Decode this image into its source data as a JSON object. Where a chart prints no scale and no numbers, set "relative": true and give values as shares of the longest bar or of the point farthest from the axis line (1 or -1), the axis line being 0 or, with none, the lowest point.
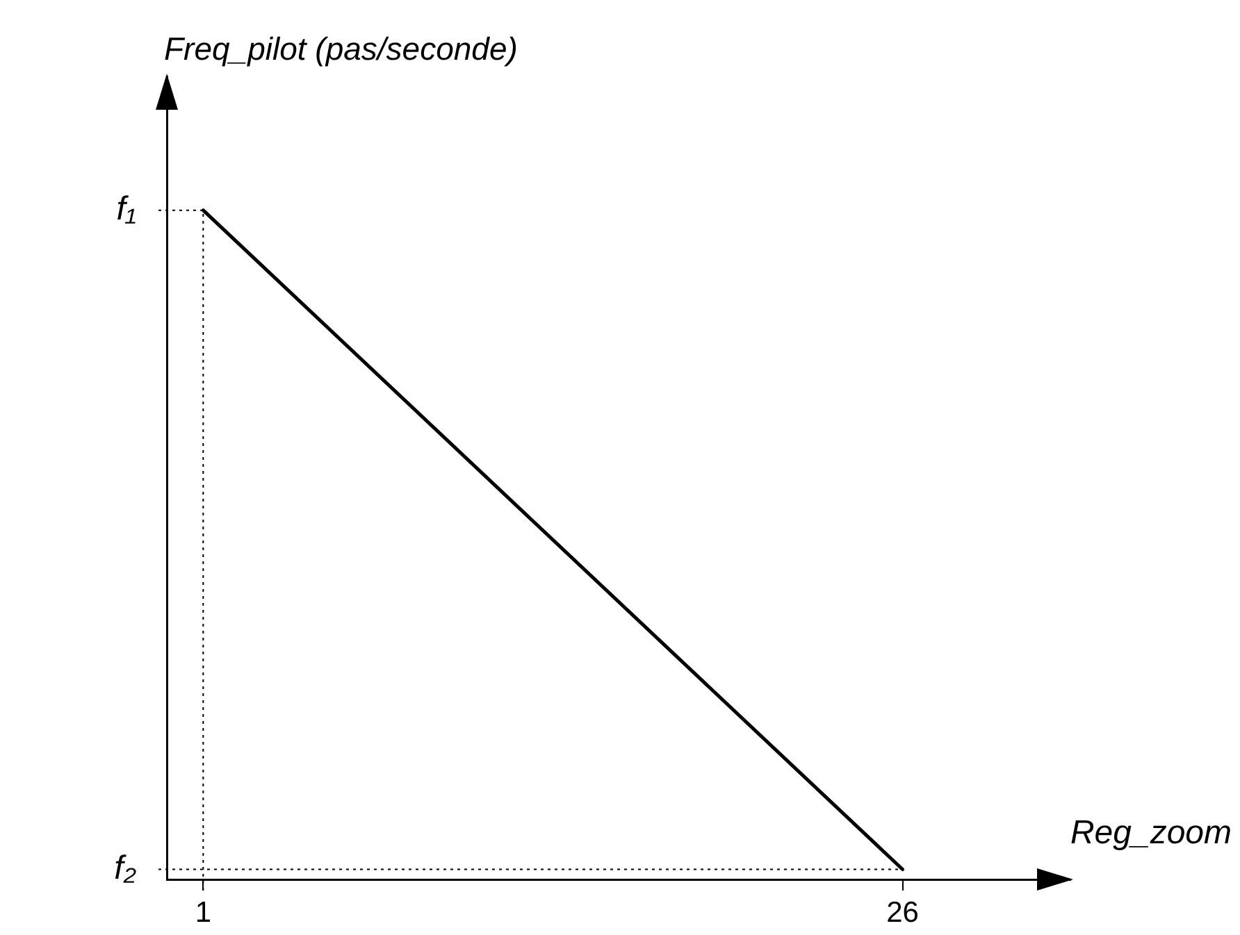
{
  "chart_data": {
    "type": "line",
    "xlabel": "Reg_zoom",
    "ylabel": "Freq_pilot (pas/seconde)",
    "relative": true,
    "x": [
      1,
      26
    ],
    "series": [
      {
        "color": "#000000",
        "values": [
          1,
          0.015
        ]
      }
    ],
    "xlim": [
      -0.3,
      32
    ],
    "xticks": [
      1,
      26
    ],
    "ref_lines": [
      {
        "axis": "y",
        "value": 1,
        "label": "f₁",
        "line_style": "dotted"
      },
      {
        "axis": "y",
        "value": 0.015,
        "label": "f₂",
        "line_style": "dotted"
      },
      {
        "axis": "x",
        "value": 1,
        "line_style": "dotted"
      }
    ],
    "marker": "none",
    "line_style": "solid"
  }
}
